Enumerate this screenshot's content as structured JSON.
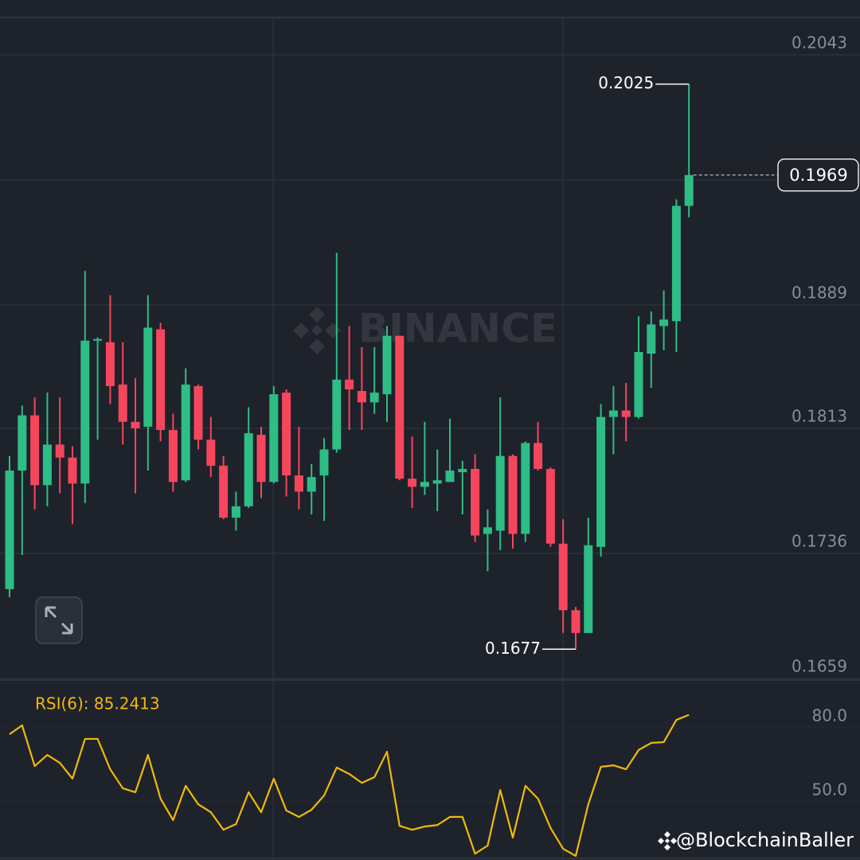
{
  "chart_data": [
    {
      "type": "candlestick",
      "open": [
        0.1714,
        0.1787,
        0.1821,
        0.1778,
        0.1803,
        0.1795,
        0.1779,
        0.1867,
        0.1866,
        0.184,
        0.1817,
        0.1814,
        0.1874,
        0.1812,
        0.1781,
        0.1839,
        0.1806,
        0.179,
        0.1758,
        0.1765,
        0.1809,
        0.178,
        0.1835,
        0.1784,
        0.1774,
        0.1784,
        0.18,
        0.1843,
        0.1836,
        0.1829,
        0.1834,
        0.187,
        0.1782,
        0.1777,
        0.1779,
        0.178,
        0.1786,
        0.1788,
        0.1748,
        0.175,
        0.1796,
        0.1748,
        0.1804,
        0.1788,
        0.1742,
        0.1701,
        0.1687,
        0.174,
        0.182,
        0.1824,
        0.182,
        0.1859,
        0.1876,
        0.1879,
        0.195
      ],
      "high": [
        0.1796,
        0.1827,
        0.1832,
        0.1835,
        0.1832,
        0.1802,
        0.191,
        0.1869,
        0.1895,
        0.1866,
        0.1844,
        0.1895,
        0.1878,
        0.1822,
        0.185,
        0.184,
        0.182,
        0.1796,
        0.1774,
        0.1826,
        0.1814,
        0.1839,
        0.1837,
        0.1814,
        0.1791,
        0.1807,
        0.1921,
        0.1876,
        0.1863,
        0.1863,
        0.1876,
        0.187,
        0.1808,
        0.1817,
        0.18,
        0.1819,
        0.1793,
        0.1797,
        0.1763,
        0.1832,
        0.1797,
        0.1805,
        0.1817,
        0.1789,
        0.1757,
        0.1703,
        0.1758,
        0.1828,
        0.1839,
        0.1841,
        0.1882,
        0.1885,
        0.1898,
        0.1954,
        0.2025
      ],
      "low": [
        0.1709,
        0.1735,
        0.1763,
        0.1765,
        0.1773,
        0.1754,
        0.1767,
        0.1806,
        0.1828,
        0.1803,
        0.1773,
        0.1787,
        0.1805,
        0.1774,
        0.178,
        0.18,
        0.1783,
        0.1757,
        0.175,
        0.1764,
        0.177,
        0.1779,
        0.1771,
        0.1763,
        0.176,
        0.1756,
        0.1798,
        0.1812,
        0.1812,
        0.1822,
        0.1817,
        0.1781,
        0.1764,
        0.1772,
        0.1762,
        0.178,
        0.176,
        0.1743,
        0.1725,
        0.1738,
        0.1739,
        0.1743,
        0.1787,
        0.174,
        0.1687,
        0.1677,
        0.1687,
        0.1734,
        0.1797,
        0.1805,
        0.1819,
        0.1838,
        0.1861,
        0.186,
        0.1943
      ],
      "close": [
        0.1787,
        0.1821,
        0.1778,
        0.1803,
        0.1795,
        0.1779,
        0.1867,
        0.1868,
        0.1839,
        0.1817,
        0.1813,
        0.1875,
        0.1812,
        0.178,
        0.184,
        0.1806,
        0.179,
        0.1758,
        0.1765,
        0.181,
        0.178,
        0.1834,
        0.1784,
        0.1774,
        0.1783,
        0.18,
        0.1843,
        0.1837,
        0.1829,
        0.1835,
        0.187,
        0.1782,
        0.1777,
        0.178,
        0.1781,
        0.1787,
        0.1788,
        0.1747,
        0.1752,
        0.1796,
        0.1748,
        0.1804,
        0.1788,
        0.1742,
        0.1701,
        0.1687,
        0.1741,
        0.182,
        0.1824,
        0.182,
        0.186,
        0.1877,
        0.188,
        0.195,
        0.1969
      ],
      "up_color": "#2ebd85",
      "down_color": "#f6465d",
      "ylim": [
        0.1658,
        0.2066
      ],
      "yticks": [
        0.1659,
        0.1736,
        0.1813,
        0.1889,
        0.1966,
        0.2043
      ],
      "grid": true,
      "watermark": "BINANCE"
    },
    {
      "type": "line",
      "title": "RSI(6): 85.2413",
      "color": "#f0b90b",
      "values": [
        77.4,
        81.0,
        64.5,
        69.0,
        65.8,
        59.4,
        75.5,
        75.5,
        63.2,
        55.5,
        53.9,
        69.0,
        51.3,
        42.6,
        56.5,
        49.0,
        45.8,
        38.7,
        41.0,
        53.9,
        45.8,
        59.4,
        46.5,
        43.9,
        46.8,
        52.6,
        63.9,
        61.3,
        57.7,
        60.0,
        70.3,
        40.3,
        38.7,
        40.0,
        40.6,
        43.9,
        43.9,
        29.0,
        32.3,
        54.8,
        35.5,
        56.5,
        51.3,
        39.4,
        31.0,
        28.1,
        49.0,
        64.2,
        64.8,
        63.2,
        71.0,
        73.9,
        74.2,
        83.2,
        85.2413
      ],
      "ylim": [
        26.45,
        99.35
      ],
      "yticks": [
        {
          "value": 50,
          "label": "50.0"
        },
        {
          "value": 80,
          "label": "80.0"
        }
      ]
    }
  ],
  "credit": "@BlockchainBaller"
}
